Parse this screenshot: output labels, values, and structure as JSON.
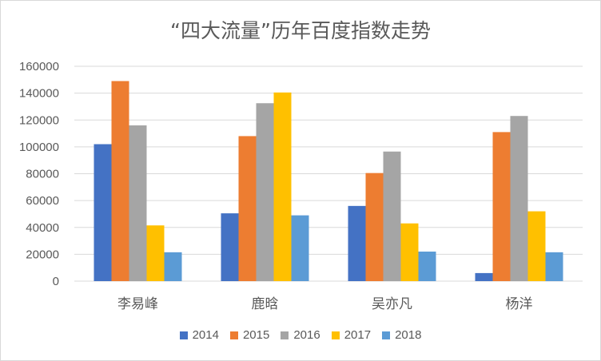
{
  "chart_data": {
    "type": "bar",
    "title": "“四大流量”历年百度指数走势",
    "categories": [
      "李易峰",
      "鹿晗",
      "吴亦凡",
      "杨洋"
    ],
    "series": [
      {
        "name": "2014",
        "color": "#4472c4",
        "values": [
          102000,
          50500,
          56000,
          6000
        ]
      },
      {
        "name": "2015",
        "color": "#ed7d31",
        "values": [
          149000,
          108000,
          80500,
          111000
        ]
      },
      {
        "name": "2016",
        "color": "#a5a5a5",
        "values": [
          116000,
          132500,
          96500,
          123000
        ]
      },
      {
        "name": "2017",
        "color": "#ffc000",
        "values": [
          41500,
          140500,
          43000,
          52000
        ]
      },
      {
        "name": "2018",
        "color": "#5b9bd5",
        "values": [
          21500,
          49000,
          22000,
          21500
        ]
      }
    ],
    "ylim": [
      0,
      160000
    ],
    "yticks": [
      "0",
      "20000",
      "40000",
      "60000",
      "80000",
      "100000",
      "120000",
      "140000",
      "160000"
    ],
    "grid": true,
    "legend_position": "bottom"
  }
}
